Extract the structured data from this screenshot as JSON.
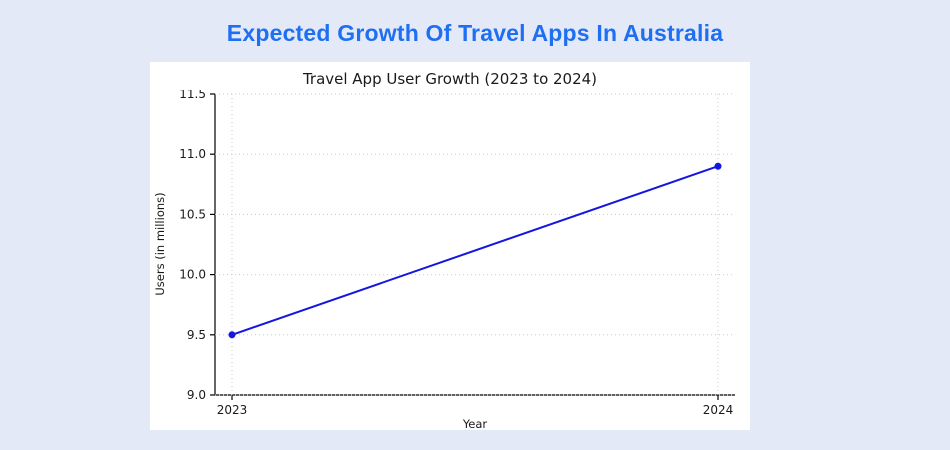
{
  "page": {
    "heading": "Expected Growth Of Travel Apps In Australia",
    "colors": {
      "background": "#e4e9f7",
      "heading": "#1f6ff2",
      "panel": "#ffffff",
      "line": "#1515e0",
      "marker": "#1515e0",
      "grid": "#c9c9c9",
      "axis": "#000000",
      "text": "#1a1a1a"
    }
  },
  "chart_data": {
    "type": "line",
    "title": "Travel App User Growth (2023 to 2024)",
    "xlabel": "Year",
    "ylabel": "Users (in millions)",
    "categories": [
      "2023",
      "2024"
    ],
    "series": [
      {
        "name": "Users",
        "values": [
          9.5,
          10.9
        ]
      }
    ],
    "ylim": [
      9.0,
      11.5
    ],
    "yticks": [
      "9.0",
      "9.5",
      "10.0",
      "10.5",
      "11.0",
      "11.5"
    ],
    "grid": true,
    "grid_style": "dotted",
    "legend": "none"
  }
}
